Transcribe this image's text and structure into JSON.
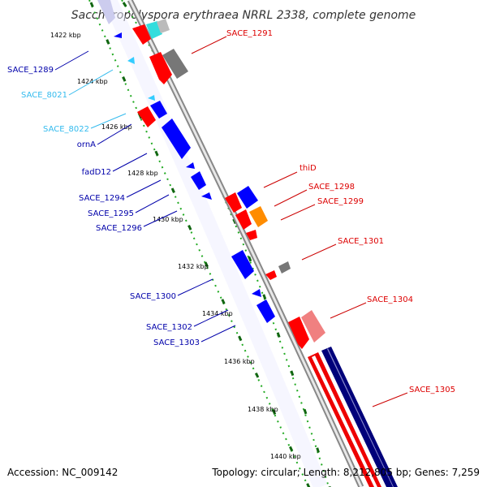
{
  "title": "Saccharopolyspora erythraea NRRL 2338, complete genome",
  "accession": "Accession: NC_009142",
  "topology": "Topology: circular; Length: 8,212,805 bp; Genes: 7,259",
  "colors": {
    "forward_red": "#ff0000",
    "reverse_blue": "#0000ff",
    "light_blue": "#33ccff",
    "gray": "#777777",
    "pink": "#f08080",
    "orange": "#ff8c00",
    "navy": "#000080",
    "cyan": "#33dddd",
    "tick_green": "#228b22"
  },
  "kbp_ticks": [
    "1422 kbp",
    "1424 kbp",
    "1426 kbp",
    "1428 kbp",
    "1430 kbp",
    "1432 kbp",
    "1434 kbp",
    "1436 kbp",
    "1438 kbp",
    "1440 kbp"
  ],
  "genes": [
    {
      "label": "SACE_1291",
      "color": "red"
    },
    {
      "label": "SACE_1289",
      "color": "blue"
    },
    {
      "label": "SACE_8021",
      "color": "lightblue"
    },
    {
      "label": "SACE_8022",
      "color": "lightblue"
    },
    {
      "label": "ornA",
      "color": "blue"
    },
    {
      "label": "fadD12",
      "color": "blue"
    },
    {
      "label": "thiD",
      "color": "red"
    },
    {
      "label": "SACE_1298",
      "color": "red"
    },
    {
      "label": "SACE_1299",
      "color": "red"
    },
    {
      "label": "SACE_1294",
      "color": "blue"
    },
    {
      "label": "SACE_1295",
      "color": "blue"
    },
    {
      "label": "SACE_1296",
      "color": "blue"
    },
    {
      "label": "SACE_1301",
      "color": "red"
    },
    {
      "label": "SACE_1300",
      "color": "blue"
    },
    {
      "label": "SACE_1304",
      "color": "red"
    },
    {
      "label": "SACE_1302",
      "color": "blue"
    },
    {
      "label": "SACE_1303",
      "color": "blue"
    },
    {
      "label": "SACE_1305",
      "color": "red"
    }
  ]
}
